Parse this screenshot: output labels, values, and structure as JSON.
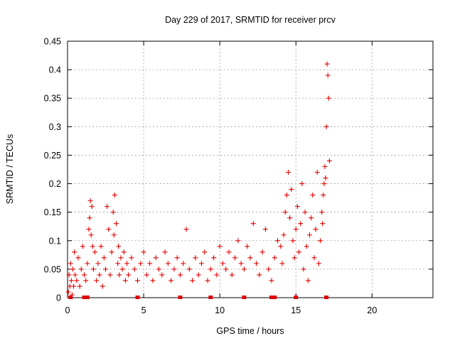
{
  "chart_data": {
    "type": "scatter",
    "title": "Day 229 of 2017, SRMTID for receiver prcv",
    "xlabel": "GPS time / hours",
    "ylabel": "SRMTID / TECUs",
    "xlim": [
      0,
      24
    ],
    "ylim": [
      0,
      0.45
    ],
    "x_ticks": [
      "0",
      "5",
      "10",
      "15",
      "20"
    ],
    "y_ticks": [
      "0",
      "0.05",
      "0.1",
      "0.15",
      "0.2",
      "0.25",
      "0.3",
      "0.35",
      "0.4",
      "0.45"
    ],
    "grid": true,
    "marker": "plus",
    "color": "#e00000",
    "series": [
      {
        "name": "SRMTID",
        "x": [
          0.05,
          0.1,
          0.15,
          0.2,
          0.25,
          0.3,
          0.35,
          0.4,
          0.45,
          0.5,
          0.6,
          0.7,
          0.8,
          0.9,
          1.0,
          1.1,
          1.2,
          1.3,
          1.4,
          1.45,
          1.5,
          1.55,
          1.6,
          1.65,
          1.7,
          1.8,
          1.9,
          2.0,
          2.1,
          2.2,
          2.3,
          2.4,
          2.5,
          2.6,
          2.7,
          2.8,
          2.9,
          3.0,
          3.05,
          3.1,
          3.2,
          3.3,
          3.35,
          3.4,
          3.5,
          3.6,
          3.7,
          3.8,
          3.9,
          4.0,
          4.2,
          4.4,
          4.6,
          4.8,
          5.0,
          5.2,
          5.4,
          5.6,
          5.8,
          6.0,
          6.2,
          6.4,
          6.6,
          6.8,
          7.0,
          7.2,
          7.4,
          7.6,
          7.8,
          8.0,
          8.2,
          8.4,
          8.6,
          8.8,
          9.0,
          9.2,
          9.4,
          9.6,
          9.8,
          10.0,
          10.2,
          10.4,
          10.6,
          10.8,
          11.0,
          11.2,
          11.4,
          11.6,
          11.8,
          12.0,
          12.2,
          12.4,
          12.6,
          12.8,
          13.0,
          13.2,
          13.4,
          13.6,
          13.8,
          14.0,
          14.1,
          14.2,
          14.3,
          14.4,
          14.5,
          14.6,
          14.7,
          14.8,
          14.9,
          15.0,
          15.1,
          15.2,
          15.3,
          15.4,
          15.5,
          15.6,
          15.7,
          15.8,
          15.9,
          16.0,
          16.1,
          16.2,
          16.3,
          16.4,
          16.5,
          16.6,
          16.7,
          16.75,
          16.8,
          16.85,
          16.9,
          16.95,
          17.0,
          17.05,
          17.1,
          17.15,
          17.2
        ],
        "y": [
          0.01,
          0.04,
          0.02,
          0.06,
          0.03,
          0.005,
          0.05,
          0.02,
          0.08,
          0.04,
          0.03,
          0.07,
          0.02,
          0.05,
          0.09,
          0.04,
          0.03,
          0.06,
          0.12,
          0.14,
          0.17,
          0.11,
          0.16,
          0.09,
          0.05,
          0.08,
          0.03,
          0.06,
          0.04,
          0.09,
          0.02,
          0.07,
          0.05,
          0.16,
          0.12,
          0.04,
          0.08,
          0.15,
          0.11,
          0.18,
          0.13,
          0.06,
          0.09,
          0.04,
          0.07,
          0.05,
          0.08,
          0.03,
          0.06,
          0.04,
          0.07,
          0.05,
          0.03,
          0.06,
          0.08,
          0.04,
          0.06,
          0.03,
          0.07,
          0.05,
          0.04,
          0.08,
          0.06,
          0.03,
          0.05,
          0.07,
          0.04,
          0.06,
          0.12,
          0.05,
          0.03,
          0.07,
          0.04,
          0.06,
          0.08,
          0.03,
          0.05,
          0.07,
          0.04,
          0.09,
          0.06,
          0.05,
          0.08,
          0.04,
          0.07,
          0.1,
          0.06,
          0.05,
          0.09,
          0.07,
          0.13,
          0.06,
          0.04,
          0.08,
          0.12,
          0.05,
          0.03,
          0.07,
          0.1,
          0.09,
          0.06,
          0.11,
          0.15,
          0.18,
          0.22,
          0.14,
          0.19,
          0.1,
          0.07,
          0.12,
          0.16,
          0.08,
          0.13,
          0.2,
          0.05,
          0.15,
          0.09,
          0.03,
          0.11,
          0.14,
          0.18,
          0.07,
          0.12,
          0.22,
          0.06,
          0.1,
          0.15,
          0.13,
          0.18,
          0.2,
          0.23,
          0.21,
          0.3,
          0.41,
          0.39,
          0.35,
          0.24
        ]
      }
    ],
    "zero_markers_x": [
      0.2,
      1.1,
      1.3,
      4.6,
      7.4,
      9.4,
      11.6,
      13.4,
      13.6,
      15.0,
      17.0
    ]
  }
}
